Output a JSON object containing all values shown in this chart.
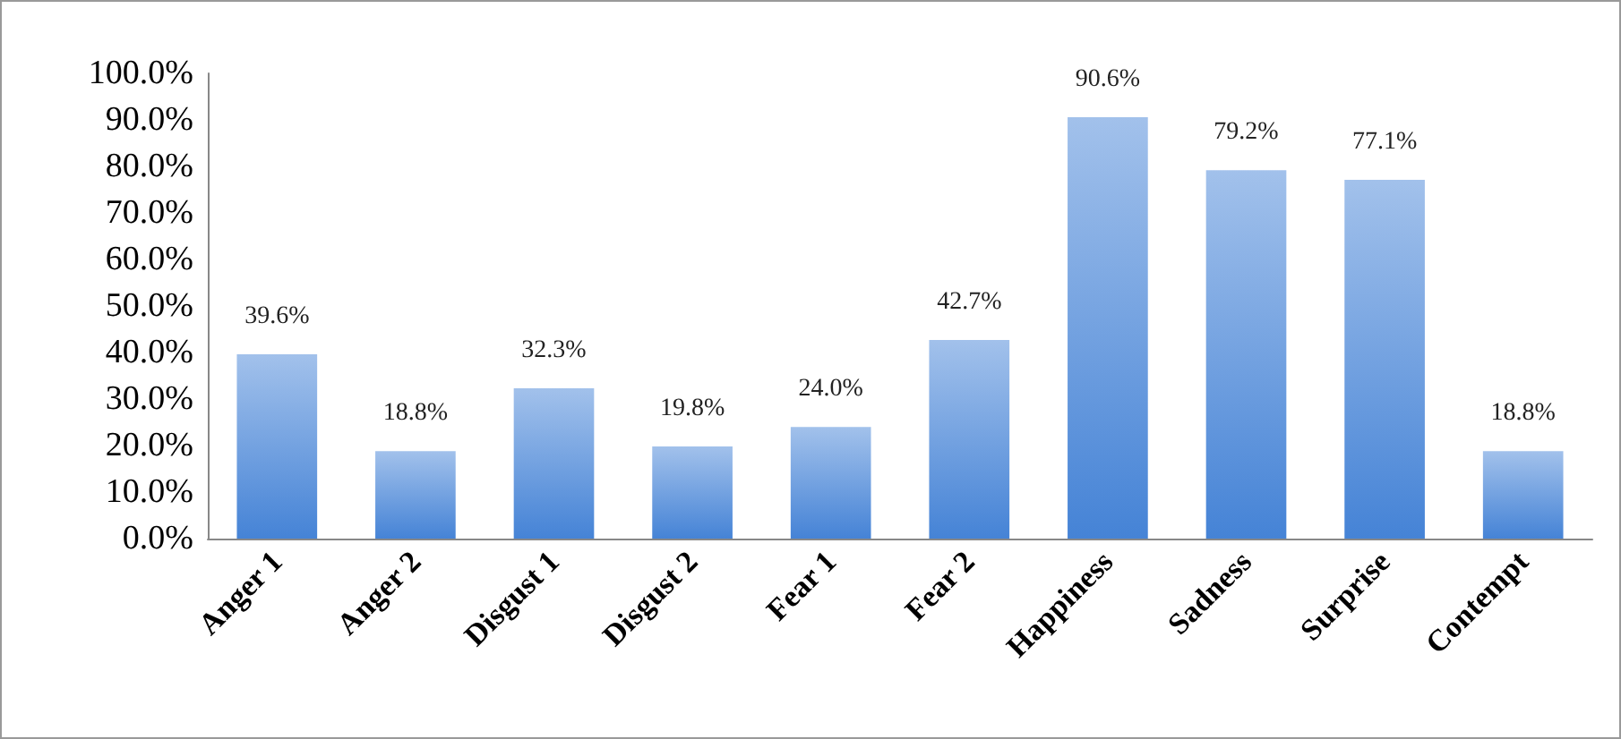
{
  "chart_data": {
    "type": "bar",
    "categories": [
      "Anger 1",
      "Anger 2",
      "Disgust 1",
      "Disgust 2",
      "Fear 1",
      "Fear 2",
      "Happiness",
      "Sadness",
      "Surprise",
      "Contempt"
    ],
    "values": [
      39.6,
      18.8,
      32.3,
      19.8,
      24.0,
      42.7,
      90.6,
      79.2,
      77.1,
      18.8
    ],
    "value_labels": [
      "39.6%",
      "18.8%",
      "32.3%",
      "19.8%",
      "24.0%",
      "42.7%",
      "90.6%",
      "79.2%",
      "77.1%",
      "18.8%"
    ],
    "color": "#4583d6",
    "ylim": [
      0,
      100
    ],
    "yticks": [
      {
        "value": 0,
        "label": "0.0%"
      },
      {
        "value": 10,
        "label": "10.0%"
      },
      {
        "value": 20,
        "label": "20.0%"
      },
      {
        "value": 30,
        "label": "30.0%"
      },
      {
        "value": 40,
        "label": "40.0%"
      },
      {
        "value": 50,
        "label": "50.0%"
      },
      {
        "value": 60,
        "label": "60.0%"
      },
      {
        "value": 70,
        "label": "70.0%"
      },
      {
        "value": 80,
        "label": "80.0%"
      },
      {
        "value": 90,
        "label": "90.0%"
      },
      {
        "value": 100,
        "label": "100.0%"
      }
    ],
    "grid": false
  }
}
